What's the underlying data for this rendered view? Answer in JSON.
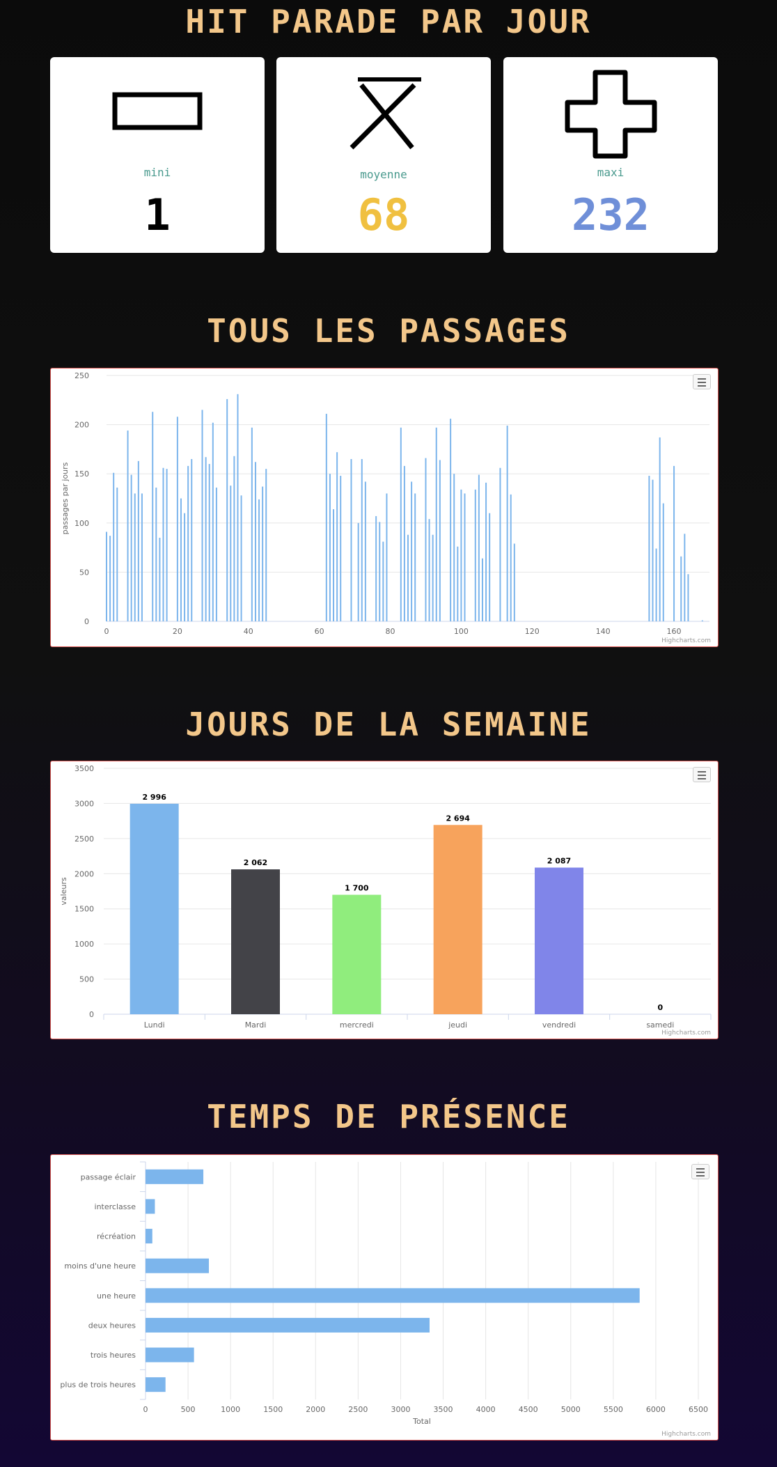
{
  "sections": {
    "hit_parade": "HIT PARADE PAR JOUR",
    "passages": "TOUS LES PASSAGES",
    "jours": "JOURS DE LA SEMAINE",
    "temps": "TEMPS DE PRÉSENCE"
  },
  "stats": [
    {
      "label": "mini",
      "value": "1",
      "color": "#000000",
      "icon": "minus-icon"
    },
    {
      "label": "moyenne",
      "value": "68",
      "color": "#f0c040",
      "icon": "x-icon"
    },
    {
      "label": "maxi",
      "value": "232",
      "color": "#6f8fd8",
      "icon": "plus-icon"
    }
  ],
  "credits": "Highcharts.com",
  "chart_data": [
    {
      "type": "bar",
      "orientation": "vertical",
      "ylabel": "passages par jours",
      "xlim": [
        0,
        170
      ],
      "ylim": [
        0,
        250
      ],
      "xticks": [
        0,
        20,
        40,
        60,
        80,
        100,
        120,
        140,
        160
      ],
      "yticks": [
        0,
        50,
        100,
        150,
        200,
        250
      ],
      "color": "#7cb5ec",
      "points": [
        [
          0,
          91
        ],
        [
          1,
          87
        ],
        [
          2,
          151
        ],
        [
          3,
          136
        ],
        [
          6,
          194
        ],
        [
          7,
          149
        ],
        [
          8,
          130
        ],
        [
          9,
          163
        ],
        [
          10,
          130
        ],
        [
          13,
          213
        ],
        [
          14,
          136
        ],
        [
          15,
          85
        ],
        [
          16,
          156
        ],
        [
          17,
          155
        ],
        [
          20,
          208
        ],
        [
          21,
          125
        ],
        [
          22,
          110
        ],
        [
          23,
          158
        ],
        [
          24,
          165
        ],
        [
          27,
          215
        ],
        [
          28,
          167
        ],
        [
          29,
          160
        ],
        [
          30,
          202
        ],
        [
          31,
          136
        ],
        [
          34,
          226
        ],
        [
          35,
          138
        ],
        [
          36,
          168
        ],
        [
          37,
          231
        ],
        [
          38,
          128
        ],
        [
          41,
          197
        ],
        [
          42,
          162
        ],
        [
          43,
          124
        ],
        [
          44,
          137
        ],
        [
          45,
          155
        ],
        [
          62,
          211
        ],
        [
          63,
          150
        ],
        [
          64,
          114
        ],
        [
          65,
          172
        ],
        [
          66,
          148
        ],
        [
          69,
          165
        ],
        [
          71,
          100
        ],
        [
          72,
          165
        ],
        [
          73,
          142
        ],
        [
          76,
          107
        ],
        [
          77,
          101
        ],
        [
          78,
          81
        ],
        [
          79,
          130
        ],
        [
          83,
          197
        ],
        [
          84,
          158
        ],
        [
          85,
          88
        ],
        [
          86,
          142
        ],
        [
          87,
          130
        ],
        [
          90,
          166
        ],
        [
          91,
          104
        ],
        [
          92,
          88
        ],
        [
          93,
          197
        ],
        [
          94,
          164
        ],
        [
          97,
          206
        ],
        [
          98,
          150
        ],
        [
          99,
          76
        ],
        [
          100,
          134
        ],
        [
          101,
          130
        ],
        [
          104,
          134
        ],
        [
          105,
          149
        ],
        [
          106,
          64
        ],
        [
          107,
          141
        ],
        [
          108,
          110
        ],
        [
          111,
          156
        ],
        [
          113,
          199
        ],
        [
          114,
          129
        ],
        [
          115,
          79
        ],
        [
          153,
          148
        ],
        [
          154,
          144
        ],
        [
          155,
          74
        ],
        [
          156,
          187
        ],
        [
          157,
          120
        ],
        [
          160,
          158
        ],
        [
          162,
          66
        ],
        [
          163,
          89
        ],
        [
          164,
          48
        ],
        [
          168,
          1
        ]
      ]
    },
    {
      "type": "bar",
      "orientation": "vertical",
      "ylabel": "valeurs",
      "categories": [
        "Lundi",
        "Mardi",
        "mercredi",
        "jeudi",
        "vendredi",
        "samedi"
      ],
      "values": [
        2996,
        2062,
        1700,
        2694,
        2087,
        0
      ],
      "data_labels": [
        "2 996",
        "2 062",
        "1 700",
        "2 694",
        "2 087",
        "0"
      ],
      "colors": [
        "#7cb5ec",
        "#434348",
        "#90ed7d",
        "#f7a35c",
        "#8085e9",
        "#f15c80"
      ],
      "ylim": [
        0,
        3500
      ],
      "yticks": [
        0,
        500,
        1000,
        1500,
        2000,
        2500,
        3000,
        3500
      ]
    },
    {
      "type": "bar",
      "orientation": "horizontal",
      "xlabel": "Total",
      "categories": [
        "passage éclair",
        "interclasse",
        "récréation",
        "moins d'une heure",
        "une heure",
        "deux heures",
        "trois heures",
        "plus de trois heures"
      ],
      "values": [
        680,
        110,
        80,
        745,
        5810,
        3340,
        570,
        235
      ],
      "color": "#7cb5ec",
      "xlim": [
        0,
        6500
      ],
      "xticks": [
        0,
        500,
        1000,
        1500,
        2000,
        2500,
        3000,
        3500,
        4000,
        4500,
        5000,
        5500,
        6000,
        6500
      ]
    }
  ]
}
